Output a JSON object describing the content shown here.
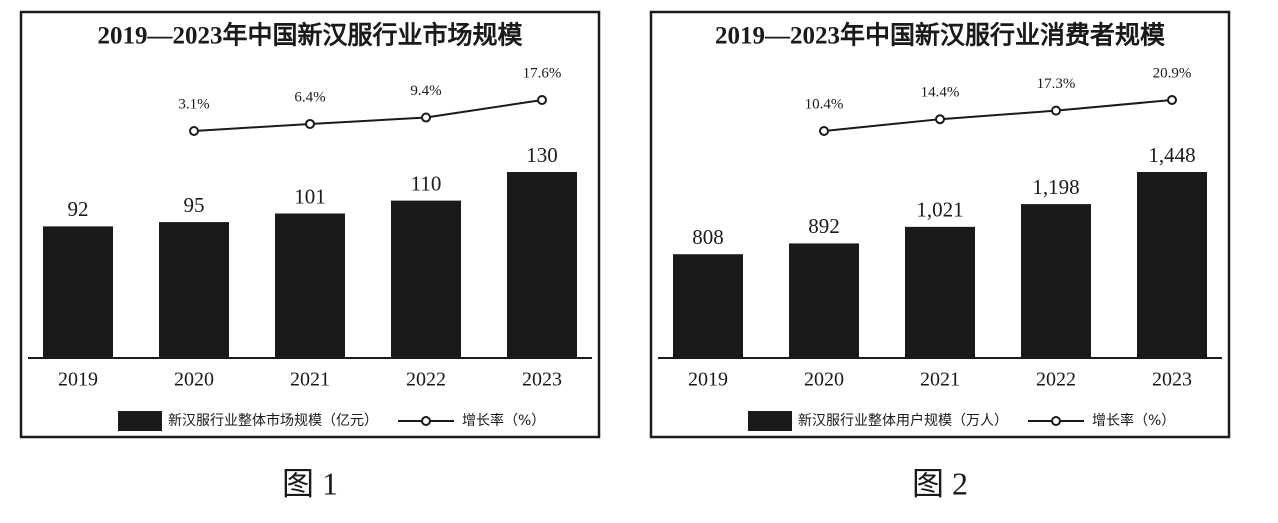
{
  "chart_data": [
    {
      "type": "bar",
      "title": "2019—2023年中国新汉服行业市场规模",
      "caption": "图 1",
      "categories": [
        "2019",
        "2020",
        "2021",
        "2022",
        "2023"
      ],
      "series": [
        {
          "name": "新汉服行业整体市场规模（亿元）",
          "type": "bar",
          "color": "#1a1a1a",
          "values": [
            92,
            95,
            101,
            110,
            130
          ]
        },
        {
          "name": "增长率（%）",
          "type": "line",
          "axis": "y2",
          "color": "#1a1a1a",
          "values": [
            null,
            3.1,
            6.4,
            9.4,
            17.6
          ],
          "value_labels": [
            null,
            "3.1%",
            "6.4%",
            "9.4%",
            "17.6%"
          ]
        }
      ]
    },
    {
      "type": "bar",
      "title": "2019—2023年中国新汉服行业消费者规模",
      "caption": "图 2",
      "categories": [
        "2019",
        "2020",
        "2021",
        "2022",
        "2023"
      ],
      "series": [
        {
          "name": "新汉服行业整体用户规模（万人）",
          "type": "bar",
          "color": "#1a1a1a",
          "values": [
            808,
            892,
            1021,
            1198,
            1448
          ],
          "value_labels": [
            "808",
            "892",
            "1,021",
            "1,198",
            "1,448"
          ]
        },
        {
          "name": "增长率（%）",
          "type": "line",
          "axis": "y2",
          "color": "#1a1a1a",
          "values": [
            null,
            10.4,
            14.4,
            17.3,
            20.9
          ],
          "value_labels": [
            null,
            "10.4%",
            "14.4%",
            "17.3%",
            "20.9%"
          ]
        }
      ]
    }
  ]
}
